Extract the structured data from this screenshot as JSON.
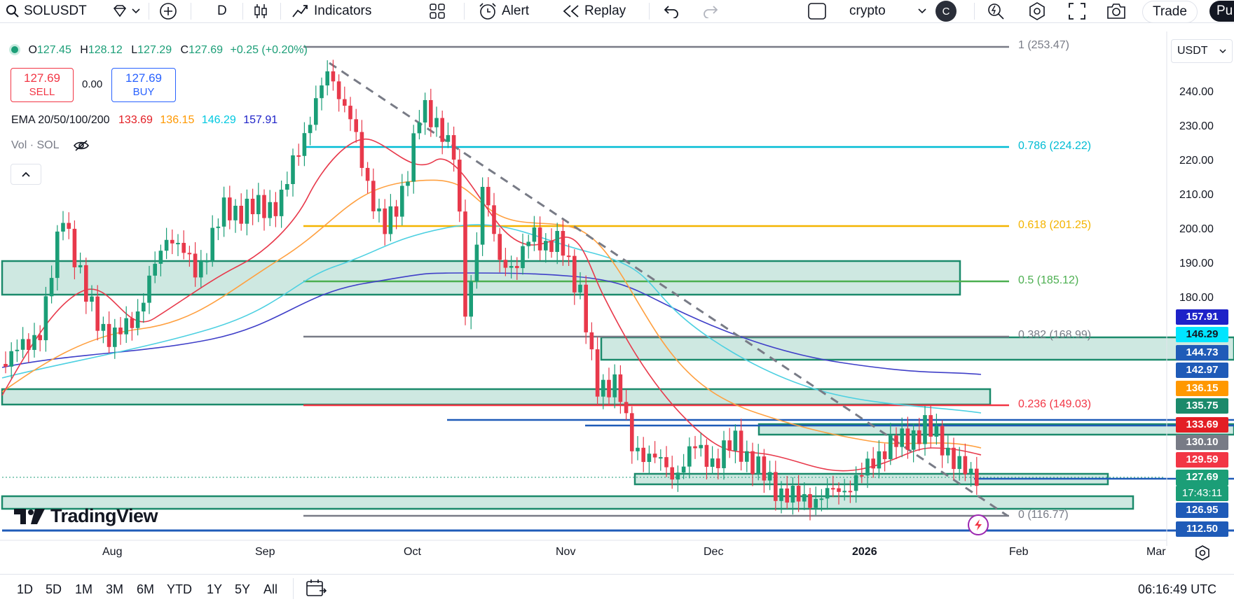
{
  "toolbar": {
    "symbol": "SOLUSDT",
    "interval": "D",
    "indicators": "Indicators",
    "alert": "Alert",
    "replay": "Replay",
    "layout_name": "crypto",
    "avatar_letter": "C",
    "trade": "Trade",
    "publish_partial": "Pu"
  },
  "legend": {
    "o_label": "O",
    "o": "127.45",
    "h_label": "H",
    "h": "128.12",
    "l_label": "L",
    "l": "127.29",
    "c_label": "C",
    "c": "127.69",
    "change": "+0.25 (+0.20%)",
    "sell_price": "127.69",
    "sell_label": "SELL",
    "spread": "0.00",
    "buy_price": "127.69",
    "buy_label": "BUY",
    "ema_label": "EMA 20/50/100/200",
    "ema20": "133.69",
    "ema50": "136.15",
    "ema100": "146.29",
    "ema200": "157.91",
    "vol_label": "Vol · SOL"
  },
  "currency": "USDT",
  "y_axis": [
    "240.00",
    "230.00",
    "220.00",
    "210.00",
    "200.00",
    "190.00",
    "180.00"
  ],
  "x_axis": [
    "Aug",
    "Sep",
    "Oct",
    "Nov",
    "Dec",
    "2026",
    "Feb",
    "Mar"
  ],
  "fib": [
    {
      "label": "1 (253.47)",
      "color": "#787b86"
    },
    {
      "label": "0.786 (224.22)",
      "color": "#00bcd4"
    },
    {
      "label": "0.618 (201.25)",
      "color": "#f4b400"
    },
    {
      "label": "0.5 (185.12)",
      "color": "#4caf50"
    },
    {
      "label": "0.382 (168.99)",
      "color": "#787b86"
    },
    {
      "label": "0.236 (149.03)",
      "color": "#f23645"
    },
    {
      "label": "0 (116.77)",
      "color": "#787b86"
    }
  ],
  "price_tags": [
    {
      "value": "157.91",
      "bg": "#1e22c8"
    },
    {
      "value": "146.29",
      "bg": "#00e5ff"
    },
    {
      "value": "144.73",
      "bg": "#1f5bb8"
    },
    {
      "value": "142.97",
      "bg": "#1f5bb8"
    },
    {
      "value": "136.15",
      "bg": "#ff9800"
    },
    {
      "value": "135.75",
      "bg": "#1b8a6b"
    },
    {
      "value": "133.69",
      "bg": "#e31e24"
    },
    {
      "value": "130.10",
      "bg": "#787b86"
    },
    {
      "value": "129.59",
      "bg": "#f23645"
    },
    {
      "value": "127.69",
      "bg": "#1b9e77"
    },
    {
      "value": "17:43:11",
      "bg": "#1b9e77"
    },
    {
      "value": "126.95",
      "bg": "#1f5bb8"
    },
    {
      "value": "112.50",
      "bg": "#1f5bb8"
    }
  ],
  "brand": "TradingView",
  "timeframes": [
    "1D",
    "5D",
    "1M",
    "3M",
    "6M",
    "YTD",
    "1Y",
    "5Y",
    "All"
  ],
  "clock": "06:16:49 UTC"
}
